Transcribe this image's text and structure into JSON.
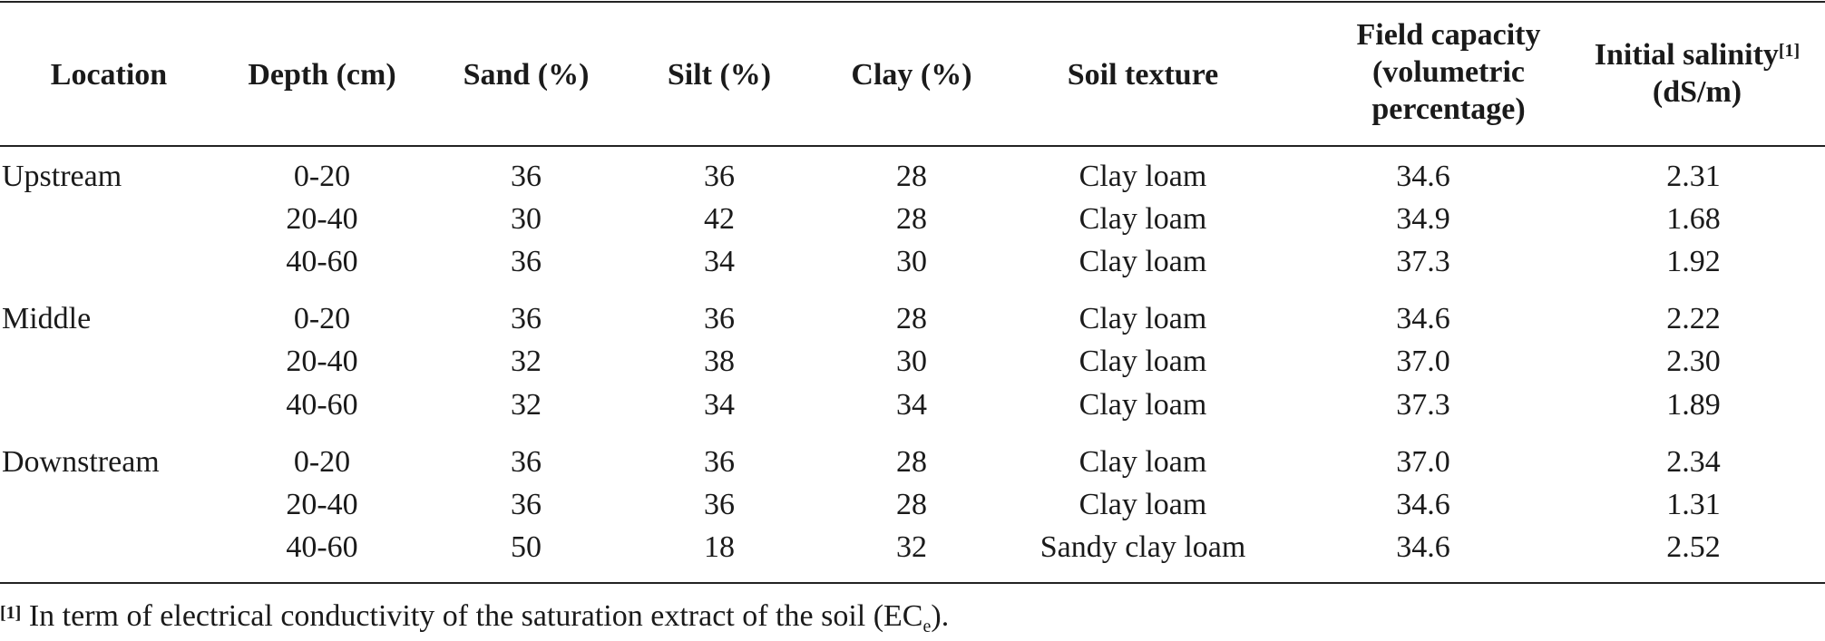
{
  "table": {
    "headers": {
      "location": "Location",
      "depth": "Depth (cm)",
      "sand": "Sand (%)",
      "silt": "Silt (%)",
      "clay": "Clay (%)",
      "texture": "Soil texture",
      "field_capacity": [
        "Field capacity",
        "(volumetric",
        "percentage)"
      ],
      "salinity": [
        "Initial salinity",
        "(dS/m)"
      ],
      "salinity_note": "[1]"
    },
    "rows": [
      {
        "location": "Upstream",
        "depth": "0-20",
        "sand": "36",
        "silt": "36",
        "clay": "28",
        "texture": "Clay loam",
        "fc": "34.6",
        "salinity": "2.31"
      },
      {
        "location": "",
        "depth": "20-40",
        "sand": "30",
        "silt": "42",
        "clay": "28",
        "texture": "Clay loam",
        "fc": "34.9",
        "salinity": "1.68"
      },
      {
        "location": "",
        "depth": "40-60",
        "sand": "36",
        "silt": "34",
        "clay": "30",
        "texture": "Clay loam",
        "fc": "37.3",
        "salinity": "1.92"
      },
      {
        "location": "Middle",
        "depth": "0-20",
        "sand": "36",
        "silt": "36",
        "clay": "28",
        "texture": "Clay loam",
        "fc": "34.6",
        "salinity": "2.22"
      },
      {
        "location": "",
        "depth": "20-40",
        "sand": "32",
        "silt": "38",
        "clay": "30",
        "texture": "Clay loam",
        "fc": "37.0",
        "salinity": "2.30"
      },
      {
        "location": "",
        "depth": "40-60",
        "sand": "32",
        "silt": "34",
        "clay": "34",
        "texture": "Clay loam",
        "fc": "37.3",
        "salinity": "1.89"
      },
      {
        "location": "Downstream",
        "depth": "0-20",
        "sand": "36",
        "silt": "36",
        "clay": "28",
        "texture": "Clay loam",
        "fc": "37.0",
        "salinity": "2.34"
      },
      {
        "location": "",
        "depth": "20-40",
        "sand": "36",
        "silt": "36",
        "clay": "28",
        "texture": "Clay loam",
        "fc": "34.6",
        "salinity": "1.31"
      },
      {
        "location": "",
        "depth": "40-60",
        "sand": "50",
        "silt": "18",
        "clay": "32",
        "texture": "Sandy clay loam",
        "fc": "34.6",
        "salinity": "2.52"
      }
    ]
  },
  "footnote": {
    "marker": "[1]",
    "text": " In term of electrical conductivity of the saturation extract of the soil (EC",
    "subscript": "e",
    "tail": ")."
  }
}
